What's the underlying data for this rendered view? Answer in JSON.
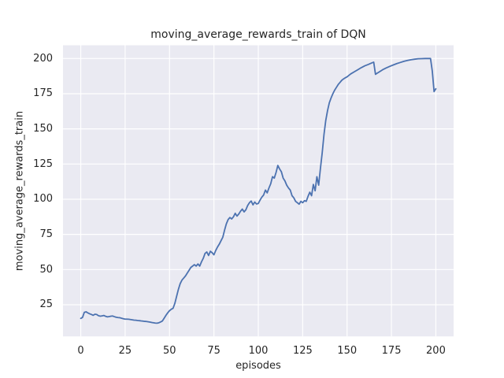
{
  "chart_data": {
    "type": "line",
    "title": "moving_average_rewards_train of DQN",
    "xlabel": "episodes",
    "ylabel": "moving_average_rewards_train",
    "x_ticks": [
      0,
      25,
      50,
      75,
      100,
      125,
      150,
      175,
      200
    ],
    "y_ticks": [
      25,
      50,
      75,
      100,
      125,
      150,
      175,
      200
    ],
    "xlim": [
      -10,
      210
    ],
    "ylim": [
      2.5,
      209.4
    ],
    "grid": true,
    "legend_position": "none",
    "colors": {
      "figure_bg": "#ffffff",
      "axes_bg": "#eaeaf2",
      "grid": "#ffffff",
      "line": "#4c72b0",
      "text": "#262626"
    },
    "series": [
      {
        "name": "moving_average_rewards_train",
        "points": [
          [
            0,
            15.3
          ],
          [
            1,
            16
          ],
          [
            2,
            19.6
          ],
          [
            3,
            20
          ],
          [
            4,
            19.2
          ],
          [
            5,
            18.6
          ],
          [
            6,
            18.1
          ],
          [
            7,
            17.5
          ],
          [
            8,
            18.3
          ],
          [
            9,
            18.1
          ],
          [
            10,
            17.2
          ],
          [
            11,
            16.9
          ],
          [
            12,
            17.1
          ],
          [
            13,
            17.4
          ],
          [
            14,
            16.8
          ],
          [
            15,
            16.4
          ],
          [
            16,
            16.6
          ],
          [
            17,
            16.9
          ],
          [
            18,
            17
          ],
          [
            19,
            16.5
          ],
          [
            20,
            16.1
          ],
          [
            21,
            15.9
          ],
          [
            22,
            15.8
          ],
          [
            23,
            15.4
          ],
          [
            24,
            15.1
          ],
          [
            25,
            14.8
          ],
          [
            26,
            14.8
          ],
          [
            27,
            14.7
          ],
          [
            28,
            14.5
          ],
          [
            29,
            14.3
          ],
          [
            30,
            14.1
          ],
          [
            31,
            14
          ],
          [
            32,
            13.8
          ],
          [
            33,
            13.7
          ],
          [
            34,
            13.5
          ],
          [
            35,
            13.4
          ],
          [
            36,
            13.2
          ],
          [
            37,
            13.1
          ],
          [
            38,
            12.9
          ],
          [
            39,
            12.7
          ],
          [
            40,
            12.4
          ],
          [
            41,
            12.2
          ],
          [
            42,
            12
          ],
          [
            43,
            11.9
          ],
          [
            44,
            12.2
          ],
          [
            45,
            12.8
          ],
          [
            46,
            13.5
          ],
          [
            47,
            15.5
          ],
          [
            48,
            17.5
          ],
          [
            49,
            19.3
          ],
          [
            50,
            20.8
          ],
          [
            51,
            21.8
          ],
          [
            52,
            22.5
          ],
          [
            53,
            26
          ],
          [
            54,
            31
          ],
          [
            55,
            36
          ],
          [
            56,
            40
          ],
          [
            57,
            42.5
          ],
          [
            58,
            44
          ],
          [
            59,
            45.5
          ],
          [
            60,
            47.5
          ],
          [
            61,
            49.5
          ],
          [
            62,
            51.5
          ],
          [
            63,
            52.5
          ],
          [
            64,
            53.5
          ],
          [
            65,
            52.5
          ],
          [
            66,
            54
          ],
          [
            67,
            52.5
          ],
          [
            68,
            55.5
          ],
          [
            69,
            58
          ],
          [
            70,
            61.5
          ],
          [
            71,
            62.5
          ],
          [
            72,
            60
          ],
          [
            73,
            63
          ],
          [
            74,
            62
          ],
          [
            75,
            60.5
          ],
          [
            76,
            63.5
          ],
          [
            77,
            66
          ],
          [
            78,
            68
          ],
          [
            79,
            70.5
          ],
          [
            80,
            73
          ],
          [
            81,
            78
          ],
          [
            82,
            82.5
          ],
          [
            83,
            85.5
          ],
          [
            84,
            87
          ],
          [
            85,
            86
          ],
          [
            86,
            87.5
          ],
          [
            87,
            90
          ],
          [
            88,
            88
          ],
          [
            89,
            89.5
          ],
          [
            90,
            91.5
          ],
          [
            91,
            93
          ],
          [
            92,
            91
          ],
          [
            93,
            92.5
          ],
          [
            94,
            95.5
          ],
          [
            95,
            97.5
          ],
          [
            96,
            98.7
          ],
          [
            97,
            96
          ],
          [
            98,
            98
          ],
          [
            99,
            96.6
          ],
          [
            100,
            97
          ],
          [
            101,
            99.4
          ],
          [
            102,
            101.5
          ],
          [
            103,
            103
          ],
          [
            104,
            106.5
          ],
          [
            105,
            104.5
          ],
          [
            106,
            108
          ],
          [
            107,
            111
          ],
          [
            108,
            116
          ],
          [
            109,
            115
          ],
          [
            110,
            119
          ],
          [
            111,
            124
          ],
          [
            112,
            121.5
          ],
          [
            113,
            119.5
          ],
          [
            114,
            115
          ],
          [
            115,
            113
          ],
          [
            116,
            110
          ],
          [
            117,
            108
          ],
          [
            118,
            106.5
          ],
          [
            119,
            102.5
          ],
          [
            120,
            101
          ],
          [
            121,
            98.5
          ],
          [
            122,
            97.5
          ],
          [
            123,
            96.5
          ],
          [
            124,
            98.5
          ],
          [
            125,
            97.5
          ],
          [
            126,
            99
          ],
          [
            127,
            98.5
          ],
          [
            128,
            102
          ],
          [
            129,
            105
          ],
          [
            130,
            102.5
          ],
          [
            131,
            110.5
          ],
          [
            132,
            106
          ],
          [
            133,
            116
          ],
          [
            134,
            110
          ],
          [
            135,
            122
          ],
          [
            136,
            133
          ],
          [
            137,
            146
          ],
          [
            138,
            156
          ],
          [
            139,
            163
          ],
          [
            140,
            168.5
          ],
          [
            141,
            172
          ],
          [
            142,
            175
          ],
          [
            143,
            177.5
          ],
          [
            144,
            179.5
          ],
          [
            145,
            181.5
          ],
          [
            146,
            183
          ],
          [
            147,
            184.5
          ],
          [
            148,
            185.5
          ],
          [
            149,
            186.3
          ],
          [
            150,
            187
          ],
          [
            152,
            189
          ],
          [
            154,
            190.5
          ],
          [
            156,
            192
          ],
          [
            158,
            193.5
          ],
          [
            160,
            194.8
          ],
          [
            162,
            195.8
          ],
          [
            164,
            196.9
          ],
          [
            165,
            197.4
          ],
          [
            166,
            188.8
          ],
          [
            167,
            189.6
          ],
          [
            168,
            190.4
          ],
          [
            170,
            192
          ],
          [
            172,
            193.3
          ],
          [
            174,
            194.4
          ],
          [
            176,
            195.4
          ],
          [
            178,
            196.4
          ],
          [
            180,
            197.2
          ],
          [
            182,
            198
          ],
          [
            184,
            198.6
          ],
          [
            186,
            199.1
          ],
          [
            188,
            199.5
          ],
          [
            190,
            199.8
          ],
          [
            192,
            199.9
          ],
          [
            194,
            200
          ],
          [
            196,
            200
          ],
          [
            197,
            200
          ],
          [
            198,
            191
          ],
          [
            199,
            176.5
          ],
          [
            200,
            178.5
          ]
        ]
      }
    ]
  }
}
